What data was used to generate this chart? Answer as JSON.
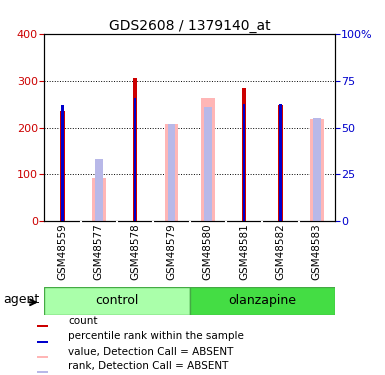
{
  "title": "GDS2608 / 1379140_at",
  "samples": [
    "GSM48559",
    "GSM48577",
    "GSM48578",
    "GSM48579",
    "GSM48580",
    "GSM48581",
    "GSM48582",
    "GSM48583"
  ],
  "groups": [
    {
      "label": "control",
      "indices": [
        0,
        1,
        2,
        3
      ],
      "color_light": "#aaffaa",
      "color_dark": "#44dd44"
    },
    {
      "label": "olanzapine",
      "indices": [
        4,
        5,
        6,
        7
      ],
      "color_light": "#44dd44",
      "color_dark": "#44dd44"
    }
  ],
  "count_values": [
    235,
    null,
    305,
    null,
    null,
    285,
    248,
    null
  ],
  "rank_values": [
    247,
    null,
    262,
    null,
    null,
    250,
    250,
    null
  ],
  "absent_value_values": [
    null,
    92,
    null,
    207,
    262,
    null,
    null,
    218
  ],
  "absent_rank_values": [
    null,
    133,
    null,
    207,
    243,
    null,
    null,
    220
  ],
  "ylim": [
    0,
    400
  ],
  "yticks_left": [
    0,
    100,
    200,
    300,
    400
  ],
  "count_color": "#cc0000",
  "rank_color": "#0000cc",
  "absent_value_color": "#ffb6b6",
  "absent_rank_color": "#b8b8e8",
  "agent_label": "agent",
  "legend": [
    {
      "label": "count",
      "color": "#cc0000"
    },
    {
      "label": "percentile rank within the sample",
      "color": "#0000cc"
    },
    {
      "label": "value, Detection Call = ABSENT",
      "color": "#ffb6b6"
    },
    {
      "label": "rank, Detection Call = ABSENT",
      "color": "#b8b8e8"
    }
  ]
}
